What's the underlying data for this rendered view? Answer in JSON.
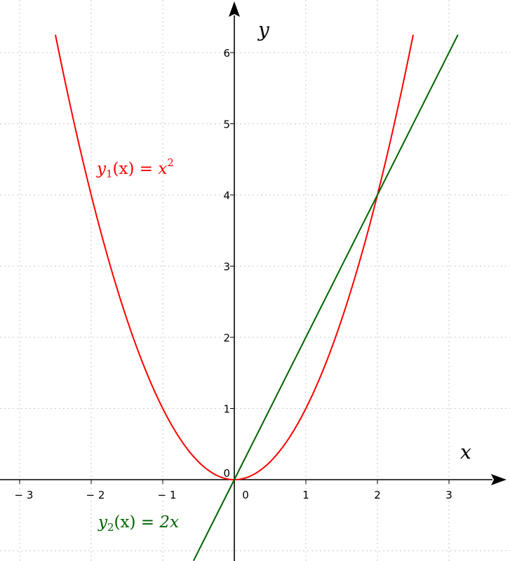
{
  "chart_data": {
    "type": "line",
    "title": "",
    "xlabel": "x",
    "ylabel": "y",
    "xlim": [
      -3.3,
      3.8
    ],
    "ylim": [
      -1.15,
      6.6
    ],
    "grid": true,
    "x_ticks": [
      -3,
      -2,
      -1,
      0,
      1,
      2,
      3
    ],
    "y_ticks": [
      0,
      1,
      2,
      3,
      4,
      5,
      6
    ],
    "x_tick_labels": [
      "− 3",
      "− 2",
      "− 1",
      "0",
      "1",
      "2",
      "3"
    ],
    "y_tick_labels": [
      "0",
      "1",
      "2",
      "3",
      "4",
      "5",
      "6"
    ],
    "series": [
      {
        "name": "y1(x) = x^2",
        "label_parts": {
          "y": "y",
          "sub": "1",
          "arg": "(x)",
          "eq": " = ",
          "rhs": "x",
          "sup": "2"
        },
        "color": "#ff0000",
        "x_range": [
          -2.5,
          2.5
        ],
        "x": [
          -2.5,
          -2,
          -1.5,
          -1,
          -0.5,
          0,
          0.5,
          1,
          1.5,
          2,
          2.5
        ],
        "y": [
          6.25,
          4,
          2.25,
          1,
          0.25,
          0,
          0.25,
          1,
          2.25,
          4,
          6.25
        ]
      },
      {
        "name": "y2(x) = 2x",
        "label_parts": {
          "y": "y",
          "sub": "2",
          "arg": "(x)",
          "eq": " = ",
          "rhs": "2x",
          "sup": ""
        },
        "color": "#006400",
        "x_range": [
          -0.57,
          3.125
        ],
        "x": [
          -0.57,
          0,
          1,
          2,
          3.125
        ],
        "y": [
          -1.14,
          0,
          2,
          4,
          6.25
        ]
      }
    ]
  }
}
